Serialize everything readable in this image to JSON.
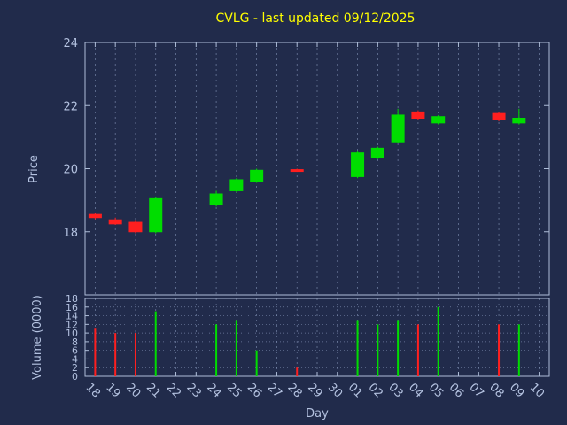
{
  "chart_data": {
    "type": "candlestick",
    "title": "CVLG - last updated 09/12/2025",
    "xlabel": "Day",
    "price_ylabel": "Price",
    "volume_ylabel": "Volume (0000)",
    "price_ylim": [
      16,
      24
    ],
    "price_ticks": [
      18,
      20,
      22,
      24
    ],
    "volume_ylim": [
      0,
      18
    ],
    "volume_ticks": [
      0,
      2,
      4,
      6,
      8,
      10,
      12,
      14,
      16,
      18
    ],
    "grid": true,
    "days": [
      "18",
      "19",
      "20",
      "21",
      "22",
      "23",
      "24",
      "25",
      "26",
      "27",
      "28",
      "29",
      "30",
      "01",
      "02",
      "03",
      "04",
      "05",
      "06",
      "07",
      "08",
      "09",
      "10"
    ],
    "candles": [
      {
        "day": "18",
        "open": 18.55,
        "high": 18.6,
        "low": 18.4,
        "close": 18.45,
        "volume": 11
      },
      {
        "day": "19",
        "open": 18.38,
        "high": 18.45,
        "low": 18.22,
        "close": 18.25,
        "volume": 10
      },
      {
        "day": "20",
        "open": 18.3,
        "high": 18.35,
        "low": 17.95,
        "close": 18.0,
        "volume": 10
      },
      {
        "day": "21",
        "open": 18.0,
        "high": 19.1,
        "low": 17.95,
        "close": 19.05,
        "volume": 15
      },
      {
        "day": "24",
        "open": 18.85,
        "high": 19.3,
        "low": 18.8,
        "close": 19.2,
        "volume": 12
      },
      {
        "day": "25",
        "open": 19.3,
        "high": 19.7,
        "low": 19.25,
        "close": 19.65,
        "volume": 13
      },
      {
        "day": "26",
        "open": 19.6,
        "high": 20.0,
        "low": 19.55,
        "close": 19.95,
        "volume": 6
      },
      {
        "day": "28",
        "open": 19.97,
        "high": 20.0,
        "low": 19.9,
        "close": 19.93,
        "volume": 2
      },
      {
        "day": "01",
        "open": 19.75,
        "high": 20.55,
        "low": 19.7,
        "close": 20.5,
        "volume": 13
      },
      {
        "day": "02",
        "open": 20.35,
        "high": 20.7,
        "low": 20.3,
        "close": 20.65,
        "volume": 12
      },
      {
        "day": "03",
        "open": 20.85,
        "high": 21.9,
        "low": 20.8,
        "close": 21.7,
        "volume": 13
      },
      {
        "day": "04",
        "open": 21.8,
        "high": 21.85,
        "low": 21.55,
        "close": 21.6,
        "volume": 12
      },
      {
        "day": "05",
        "open": 21.45,
        "high": 21.7,
        "low": 21.4,
        "close": 21.65,
        "volume": 16
      },
      {
        "day": "08",
        "open": 21.75,
        "high": 21.8,
        "low": 21.5,
        "close": 21.55,
        "volume": 12
      },
      {
        "day": "09",
        "open": 21.45,
        "high": 21.9,
        "low": 21.4,
        "close": 21.6,
        "volume": 12
      }
    ],
    "colors": {
      "background": "#212b4b",
      "text": "#b4c2e0",
      "title": "#ffff00",
      "border": "#aebdd8",
      "grid": "#8fa0c4",
      "up": "#00dd00",
      "down": "#ff1f1f"
    }
  }
}
